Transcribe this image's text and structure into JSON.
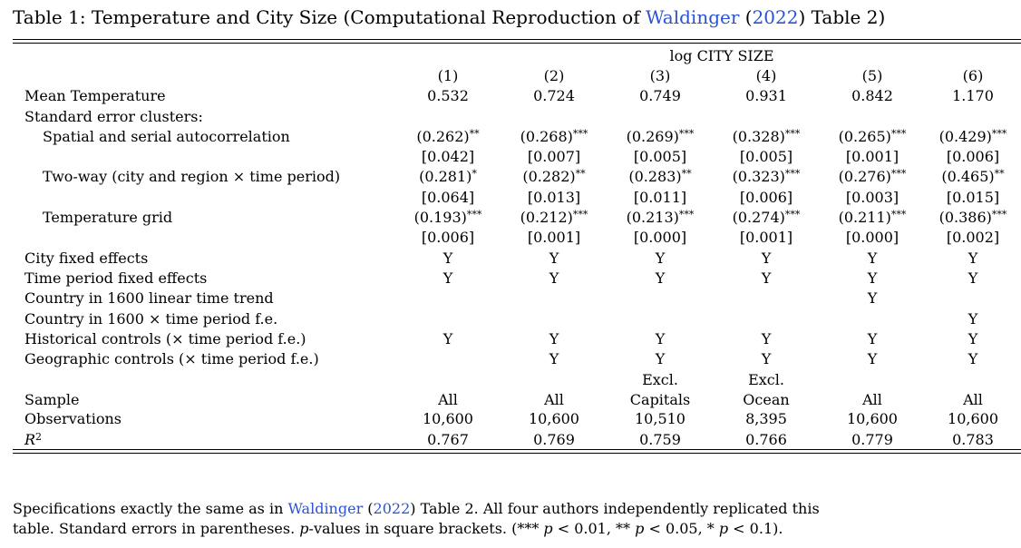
{
  "caption": {
    "prefix": "Table 1:  Temperature and City Size (Computational Reproduction of ",
    "link_author": "Waldinger",
    "paren_open": " (",
    "link_year": "2022",
    "suffix": ") Table 2)"
  },
  "header": {
    "dependent_var": "log CITY SIZE",
    "columns": [
      "(1)",
      "(2)",
      "(3)",
      "(4)",
      "(5)",
      "(6)"
    ]
  },
  "rows": {
    "mean_temp": {
      "label": "Mean Temperature",
      "values": [
        "0.532",
        "0.724",
        "0.749",
        "0.931",
        "0.842",
        "1.170"
      ]
    },
    "se_clusters": {
      "label": "Standard error clusters:"
    },
    "spatial": {
      "label": "Spatial and serial autocorrelation",
      "se": [
        "(0.262)",
        "(0.268)",
        "(0.269)",
        "(0.328)",
        "(0.265)",
        "(0.429)"
      ],
      "stars": [
        "**",
        "***",
        "***",
        "***",
        "***",
        "***"
      ],
      "p": [
        "[0.042]",
        "[0.007]",
        "[0.005]",
        "[0.005]",
        "[0.001]",
        "[0.006]"
      ]
    },
    "twoway": {
      "label": "Two-way (city and region × time period)",
      "se": [
        "(0.281)",
        "(0.282)",
        "(0.283)",
        "(0.323)",
        "(0.276)",
        "(0.465)"
      ],
      "stars": [
        "*",
        "**",
        "**",
        "***",
        "***",
        "**"
      ],
      "p": [
        "[0.064]",
        "[0.013]",
        "[0.011]",
        "[0.006]",
        "[0.003]",
        "[0.015]"
      ]
    },
    "tempgrid": {
      "label": "Temperature grid",
      "se": [
        "(0.193)",
        "(0.212)",
        "(0.213)",
        "(0.274)",
        "(0.211)",
        "(0.386)"
      ],
      "stars": [
        "***",
        "***",
        "***",
        "***",
        "***",
        "***"
      ],
      "p": [
        "[0.006]",
        "[0.001]",
        "[0.000]",
        "[0.001]",
        "[0.000]",
        "[0.002]"
      ]
    },
    "city_fe": {
      "label": "City fixed effects",
      "values": [
        "Y",
        "Y",
        "Y",
        "Y",
        "Y",
        "Y"
      ]
    },
    "time_fe": {
      "label": "Time period fixed effects",
      "values": [
        "Y",
        "Y",
        "Y",
        "Y",
        "Y",
        "Y"
      ]
    },
    "country_trend": {
      "label": "Country in 1600 linear time trend",
      "values": [
        "",
        "",
        "",
        "",
        "Y",
        ""
      ]
    },
    "country_tp": {
      "label": "Country in 1600 × time period f.e.",
      "values": [
        "",
        "",
        "",
        "",
        "",
        "Y"
      ]
    },
    "hist_controls": {
      "label": "Historical controls (× time period f.e.)",
      "values": [
        "Y",
        "Y",
        "Y",
        "Y",
        "Y",
        "Y"
      ]
    },
    "geo_controls": {
      "label": "Geographic controls (× time period f.e.)",
      "values": [
        "",
        "Y",
        "Y",
        "Y",
        "Y",
        "Y"
      ]
    },
    "sample_excl": {
      "values": [
        "",
        "",
        "Excl.",
        "Excl.",
        "",
        ""
      ]
    },
    "sample": {
      "label": "Sample",
      "values": [
        "All",
        "All",
        "Capitals",
        "Ocean",
        "All",
        "All"
      ]
    },
    "observations": {
      "label": "Observations",
      "values": [
        "10,600",
        "10,600",
        "10,510",
        "8,395",
        "10,600",
        "10,600"
      ]
    },
    "r2": {
      "label_base": "R",
      "label_sup": "2",
      "values": [
        "0.767",
        "0.769",
        "0.759",
        "0.766",
        "0.779",
        "0.783"
      ]
    }
  },
  "notes": {
    "line1_prefix": "Specifications exactly the same as in ",
    "line1_author": "Waldinger",
    "line1_paren_open": " (",
    "line1_year": "2022",
    "line1_suffix": ") Table 2. All four authors independently replicated this",
    "line2_a": "table. Standard errors in parentheses. ",
    "line2_p": "p",
    "line2_b": "-values in square brackets. (*** ",
    "line2_c1": " < 0.01, ** ",
    "line2_c2": " < 0.05, * ",
    "line2_c3": " < 0.1)."
  }
}
